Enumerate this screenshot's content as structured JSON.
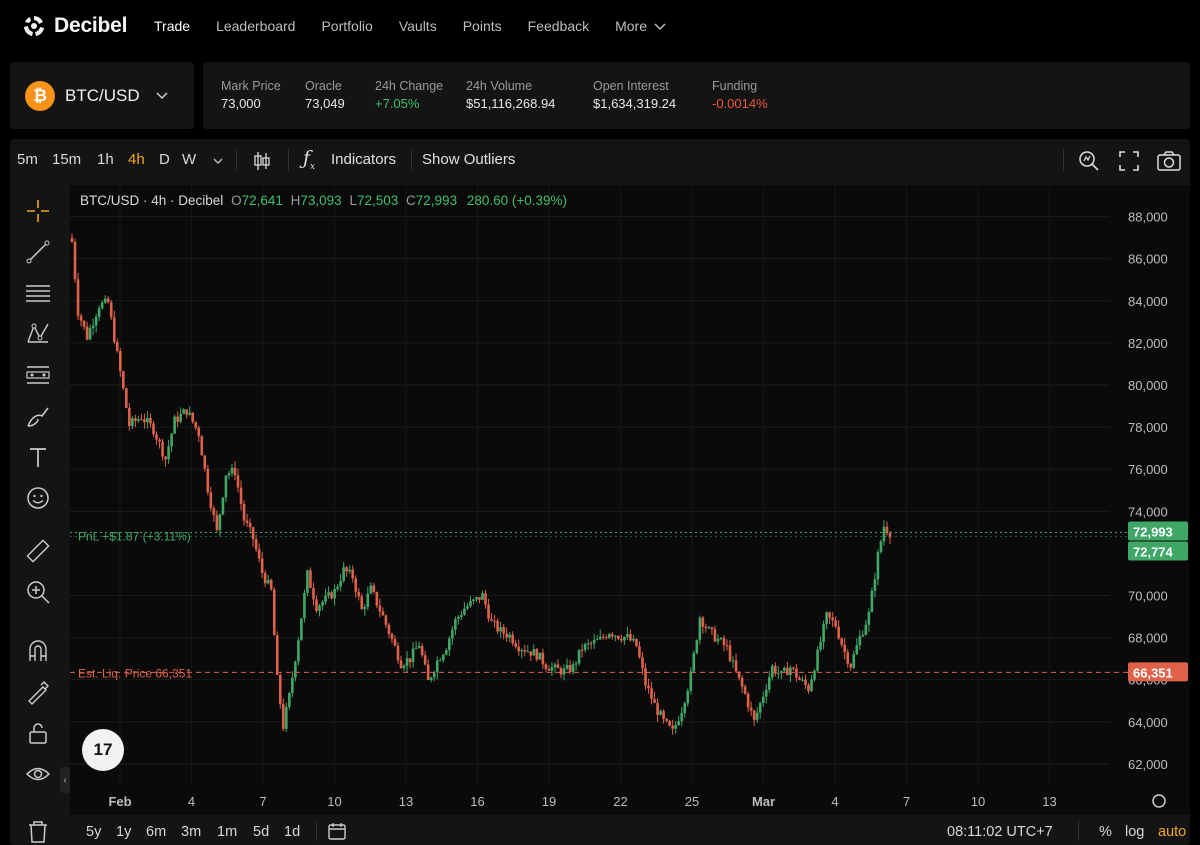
{
  "app": {
    "name": "Decibel"
  },
  "nav": {
    "items": [
      {
        "label": "Trade",
        "active": true
      },
      {
        "label": "Leaderboard"
      },
      {
        "label": "Portfolio"
      },
      {
        "label": "Vaults"
      },
      {
        "label": "Points"
      },
      {
        "label": "Feedback"
      },
      {
        "label": "More"
      }
    ]
  },
  "market": {
    "symbol": "BTC/USD",
    "icon": "bitcoin-icon",
    "icon_glyph": "₿",
    "icon_color": "#f7931a"
  },
  "stats": [
    {
      "label": "Mark Price",
      "value": "73,000",
      "tone": "neutral"
    },
    {
      "label": "Oracle",
      "value": "73,049",
      "tone": "neutral"
    },
    {
      "label": "24h Change",
      "value": "+7.05%",
      "tone": "pos"
    },
    {
      "label": "24h Volume",
      "value": "$51,116,268.94",
      "tone": "neutral"
    },
    {
      "label": "Open Interest",
      "value": "$1,634,319.24",
      "tone": "neutral"
    },
    {
      "label": "Funding",
      "value": "-0.0014%",
      "tone": "neg"
    }
  ],
  "toolbar": {
    "timeframes": [
      {
        "label": "5m"
      },
      {
        "label": "15m"
      },
      {
        "label": "1h"
      },
      {
        "label": "4h",
        "active": true
      },
      {
        "label": "D"
      },
      {
        "label": "W"
      }
    ],
    "indicators_label": "Indicators",
    "outliers_label": "Show Outliers"
  },
  "legend": {
    "title": "BTC/USD · 4h · Decibel",
    "open_key": "O",
    "open": "72,641",
    "high_key": "H",
    "high": "73,093",
    "low_key": "L",
    "low": "72,503",
    "close_key": "C",
    "close": "72,993",
    "change": "280.60 (+0.39%)"
  },
  "chart_data": {
    "type": "candlestick",
    "symbol": "BTC/USD",
    "interval": "4h",
    "ylim": [
      61000,
      89500
    ],
    "y_ticks": [
      "88,000",
      "86,000",
      "84,000",
      "82,000",
      "80,000",
      "78,000",
      "76,000",
      "74,000",
      "70,000",
      "68,000",
      "66,000",
      "64,000",
      "62,000"
    ],
    "x_ticks": [
      "Feb",
      "4",
      "7",
      "10",
      "13",
      "16",
      "19",
      "22",
      "25",
      "Mar",
      "4",
      "7",
      "10",
      "13"
    ],
    "close_path": [
      {
        "x": 0,
        "y": 86800
      },
      {
        "x": 2,
        "y": 83500
      },
      {
        "x": 5,
        "y": 82300
      },
      {
        "x": 9,
        "y": 83800
      },
      {
        "x": 12,
        "y": 83900
      },
      {
        "x": 16,
        "y": 80600
      },
      {
        "x": 19,
        "y": 78100
      },
      {
        "x": 23,
        "y": 78500
      },
      {
        "x": 27,
        "y": 77900
      },
      {
        "x": 31,
        "y": 76500
      },
      {
        "x": 34,
        "y": 78300
      },
      {
        "x": 38,
        "y": 78800
      },
      {
        "x": 42,
        "y": 77700
      },
      {
        "x": 45,
        "y": 75100
      },
      {
        "x": 48,
        "y": 73000
      },
      {
        "x": 51,
        "y": 75800
      },
      {
        "x": 54,
        "y": 75900
      },
      {
        "x": 57,
        "y": 73600
      },
      {
        "x": 60,
        "y": 72700
      },
      {
        "x": 63,
        "y": 71100
      },
      {
        "x": 66,
        "y": 70200
      },
      {
        "x": 68,
        "y": 66000
      },
      {
        "x": 70,
        "y": 63800
      },
      {
        "x": 72,
        "y": 65200
      },
      {
        "x": 75,
        "y": 68000
      },
      {
        "x": 78,
        "y": 71000
      },
      {
        "x": 81,
        "y": 69500
      },
      {
        "x": 84,
        "y": 69800
      },
      {
        "x": 87,
        "y": 70200
      },
      {
        "x": 90,
        "y": 71200
      },
      {
        "x": 93,
        "y": 70900
      },
      {
        "x": 96,
        "y": 69300
      },
      {
        "x": 99,
        "y": 70300
      },
      {
        "x": 103,
        "y": 69000
      },
      {
        "x": 106,
        "y": 67900
      },
      {
        "x": 109,
        "y": 66800
      },
      {
        "x": 112,
        "y": 67000
      },
      {
        "x": 115,
        "y": 67700
      },
      {
        "x": 118,
        "y": 65900
      },
      {
        "x": 121,
        "y": 66900
      },
      {
        "x": 124,
        "y": 67600
      },
      {
        "x": 127,
        "y": 68800
      },
      {
        "x": 130,
        "y": 69400
      },
      {
        "x": 133,
        "y": 69700
      },
      {
        "x": 136,
        "y": 70000
      },
      {
        "x": 139,
        "y": 68700
      },
      {
        "x": 142,
        "y": 68300
      },
      {
        "x": 145,
        "y": 68100
      },
      {
        "x": 148,
        "y": 67600
      },
      {
        "x": 151,
        "y": 67400
      },
      {
        "x": 154,
        "y": 67200
      },
      {
        "x": 157,
        "y": 66700
      },
      {
        "x": 160,
        "y": 66500
      },
      {
        "x": 163,
        "y": 66400
      },
      {
        "x": 166,
        "y": 66600
      },
      {
        "x": 169,
        "y": 67500
      },
      {
        "x": 172,
        "y": 67700
      },
      {
        "x": 175,
        "y": 67900
      },
      {
        "x": 178,
        "y": 68300
      },
      {
        "x": 181,
        "y": 68100
      },
      {
        "x": 184,
        "y": 68000
      },
      {
        "x": 187,
        "y": 67600
      },
      {
        "x": 190,
        "y": 65800
      },
      {
        "x": 193,
        "y": 64800
      },
      {
        "x": 196,
        "y": 64000
      },
      {
        "x": 199,
        "y": 63500
      },
      {
        "x": 202,
        "y": 64600
      },
      {
        "x": 205,
        "y": 66200
      },
      {
        "x": 208,
        "y": 69000
      },
      {
        "x": 211,
        "y": 68300
      },
      {
        "x": 214,
        "y": 67900
      },
      {
        "x": 217,
        "y": 67500
      },
      {
        "x": 220,
        "y": 66300
      },
      {
        "x": 223,
        "y": 65300
      },
      {
        "x": 226,
        "y": 64000
      },
      {
        "x": 229,
        "y": 65300
      },
      {
        "x": 232,
        "y": 66600
      },
      {
        "x": 235,
        "y": 66200
      },
      {
        "x": 238,
        "y": 66600
      },
      {
        "x": 241,
        "y": 66000
      },
      {
        "x": 244,
        "y": 65600
      },
      {
        "x": 247,
        "y": 67200
      },
      {
        "x": 250,
        "y": 69000
      },
      {
        "x": 253,
        "y": 68600
      },
      {
        "x": 256,
        "y": 67300
      },
      {
        "x": 258,
        "y": 66700
      },
      {
        "x": 261,
        "y": 68000
      },
      {
        "x": 264,
        "y": 69100
      },
      {
        "x": 267,
        "y": 71900
      },
      {
        "x": 269,
        "y": 73300
      },
      {
        "x": 271,
        "y": 72993
      }
    ]
  },
  "price_lines": {
    "current_upper": "72,993",
    "current_lower": "72,774",
    "pnl_label": "PnL +$1.87 (+3.11%)",
    "liq_label": "Est. Liq. Price 66,351",
    "liq_price": "66,351",
    "current_value": 72993,
    "liq_value": 66351
  },
  "bottom": {
    "ranges": [
      {
        "label": "5y"
      },
      {
        "label": "1y"
      },
      {
        "label": "6m"
      },
      {
        "label": "3m"
      },
      {
        "label": "1m"
      },
      {
        "label": "5d"
      },
      {
        "label": "1d"
      }
    ],
    "clock": "08:11:02 UTC+7",
    "percent_label": "%",
    "log_label": "log",
    "auto_label": "auto"
  },
  "colors": {
    "up": "#3fa866",
    "down": "#e0614a",
    "accent": "#f5a623",
    "liq": "#e0614a",
    "bg": "#0a0a0a"
  }
}
